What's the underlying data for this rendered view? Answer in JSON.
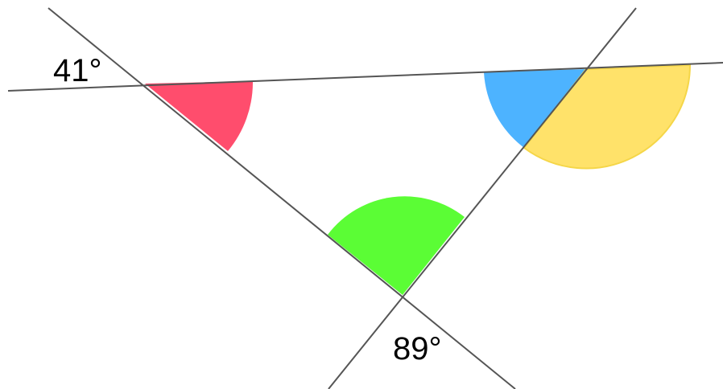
{
  "angle_labels": {
    "top_left": "41°",
    "bottom": "89°"
  },
  "colors": {
    "red_sector": "#ff4d6d",
    "blue_sector": "#4db3ff",
    "yellow_sector": "#ffe26a",
    "yellow_border": "#f5d648",
    "green_sector": "#5bfd35",
    "line": "#555555"
  }
}
